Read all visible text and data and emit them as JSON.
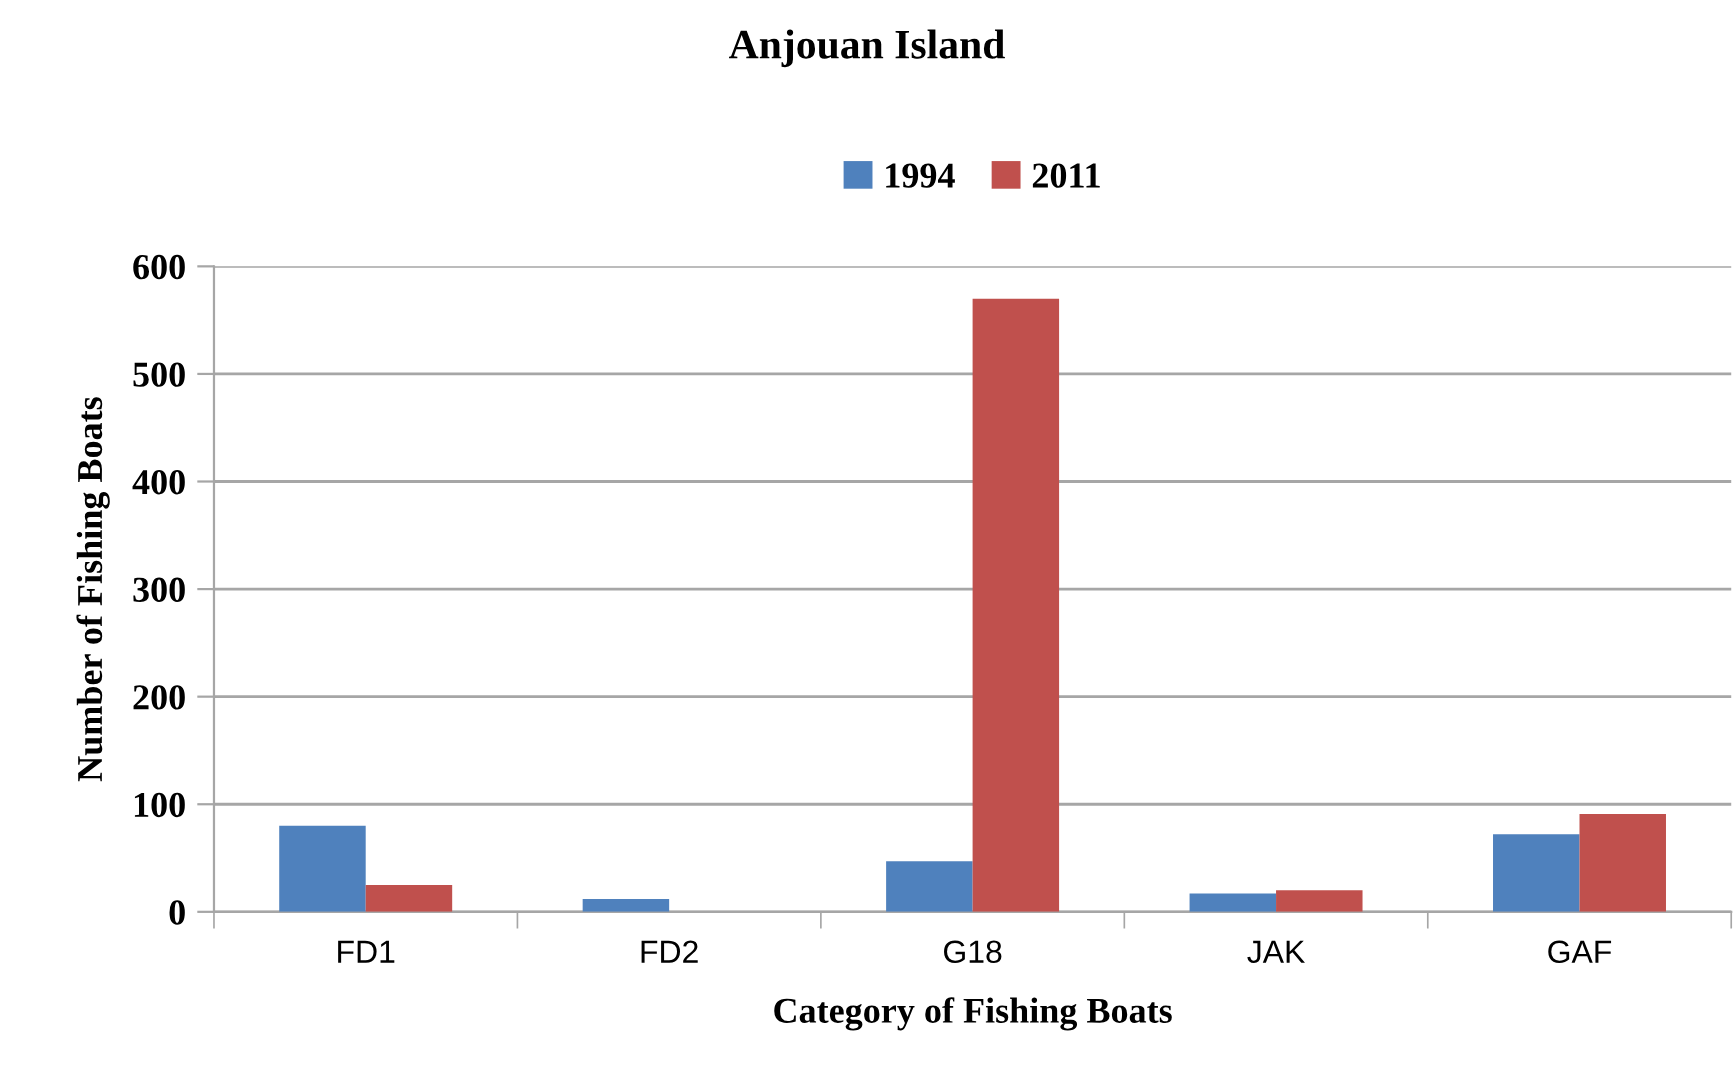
{
  "chart_data": {
    "type": "bar",
    "title": "Anjouan Island",
    "xlabel": "Category of Fishing Boats",
    "ylabel": "Number of Fishing Boats",
    "categories": [
      "FD1",
      "FD2",
      "G18",
      "JAK",
      "GAF"
    ],
    "series": [
      {
        "name": "1994",
        "color": "#4f81bd",
        "values": [
          80,
          12,
          47,
          17,
          72
        ]
      },
      {
        "name": "2011",
        "color": "#c0504d",
        "values": [
          25,
          null,
          570,
          20,
          91
        ]
      }
    ],
    "ylim": [
      0,
      600
    ],
    "yticks": [
      0,
      100,
      200,
      300,
      400,
      500,
      600
    ],
    "grid": "y",
    "legend": "top"
  }
}
